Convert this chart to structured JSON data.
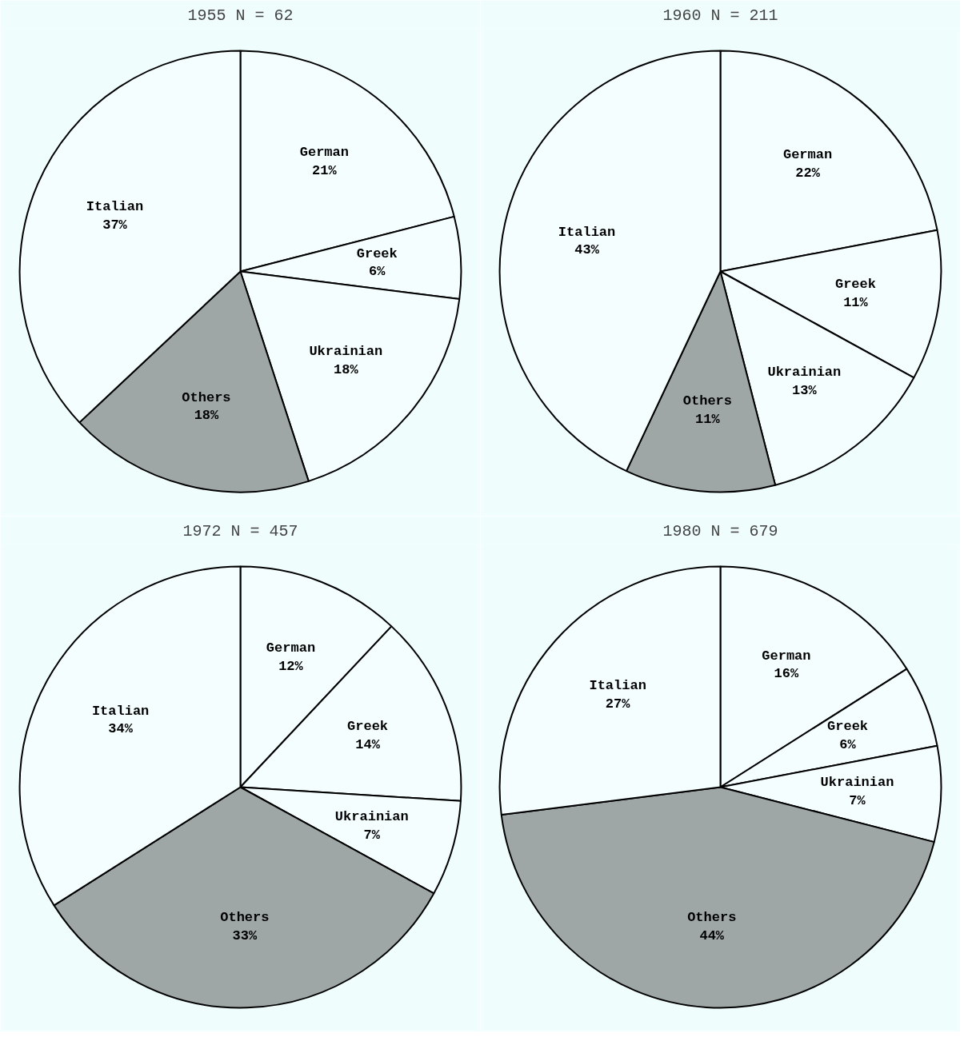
{
  "chart_data": [
    {
      "type": "pie",
      "title": "1955 N = 62",
      "categories": [
        "German",
        "Greek",
        "Ukrainian",
        "Others",
        "Italian"
      ],
      "values": [
        21,
        6,
        18,
        18,
        37
      ],
      "value_labels": [
        "21%",
        "6%",
        "18%",
        "18%",
        "37%"
      ],
      "colors": [
        "#f4fefe",
        "#f4fefe",
        "#f4fefe",
        "#9ea6a6",
        "#f4fefe"
      ]
    },
    {
      "type": "pie",
      "title": "1960 N = 211",
      "categories": [
        "German",
        "Greek",
        "Ukrainian",
        "Others",
        "Italian"
      ],
      "values": [
        22,
        11,
        13,
        11,
        43
      ],
      "value_labels": [
        "22%",
        "11%",
        "13%",
        "11%",
        "43%"
      ],
      "colors": [
        "#f4fefe",
        "#f4fefe",
        "#f4fefe",
        "#9ea6a6",
        "#f4fefe"
      ]
    },
    {
      "type": "pie",
      "title": "1972 N = 457",
      "categories": [
        "German",
        "Greek",
        "Ukrainian",
        "Others",
        "Italian"
      ],
      "values": [
        12,
        14,
        7,
        33,
        34
      ],
      "value_labels": [
        "12%",
        "14%",
        "7%",
        "33%",
        "34%"
      ],
      "colors": [
        "#f4fefe",
        "#f4fefe",
        "#f4fefe",
        "#9ea6a6",
        "#f4fefe"
      ]
    },
    {
      "type": "pie",
      "title": "1980 N = 679",
      "categories": [
        "German",
        "Greek",
        "Ukrainian",
        "Others",
        "Italian"
      ],
      "values": [
        16,
        6,
        7,
        44,
        27
      ],
      "value_labels": [
        "16%",
        "6%",
        "7%",
        "44%",
        "27%"
      ],
      "colors": [
        "#f4fefe",
        "#f4fefe",
        "#f4fefe",
        "#9ea6a6",
        "#f4fefe"
      ]
    }
  ]
}
